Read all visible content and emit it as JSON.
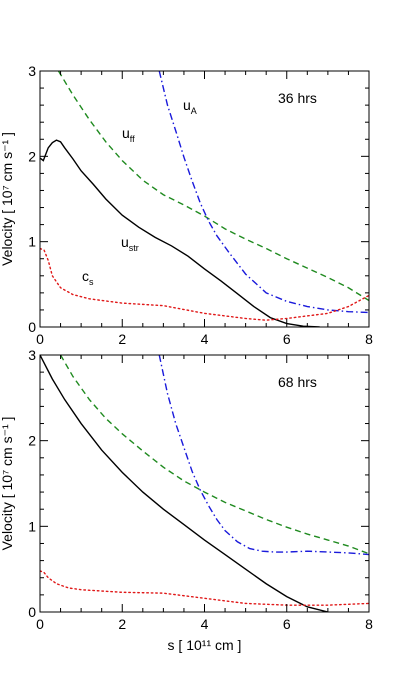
{
  "chart_data": [
    {
      "type": "line",
      "panel_label": "36 hrs",
      "xlim": [
        0,
        8
      ],
      "ylim": [
        0,
        3
      ],
      "xticks": [
        "0",
        "2",
        "4",
        "6",
        "8"
      ],
      "yticks": [
        "0",
        "1",
        "2",
        "3"
      ],
      "xlabel": "",
      "ylabel": "Velocity [ 10⁷ cm s⁻¹ ]",
      "grid": false,
      "legend": "none",
      "series": [
        {
          "name": "u_str",
          "label_main": "u",
          "label_sub": "str",
          "color": "#000000",
          "dash": "solid",
          "x": [
            0,
            0.08,
            0.2,
            0.3,
            0.4,
            0.5,
            0.6,
            0.8,
            1.0,
            1.3,
            1.6,
            2.0,
            2.4,
            2.8,
            3.2,
            3.6,
            4.0,
            4.4,
            4.8,
            5.2,
            5.6,
            6.0,
            6.4,
            6.8
          ],
          "y": [
            1.98,
            1.95,
            2.1,
            2.16,
            2.19,
            2.17,
            2.1,
            1.97,
            1.83,
            1.67,
            1.5,
            1.31,
            1.17,
            1.05,
            0.95,
            0.83,
            0.68,
            0.54,
            0.39,
            0.24,
            0.11,
            0.04,
            0.01,
            0.0
          ]
        },
        {
          "name": "u_ff",
          "label_main": "u",
          "label_sub": "ff",
          "color": "#1f8a1f",
          "dash": "dashed",
          "x": [
            0.45,
            0.8,
            1.2,
            1.6,
            2.0,
            2.5,
            3.0,
            3.5,
            4.0,
            4.5,
            5.0,
            5.5,
            6.0,
            6.5,
            7.0,
            7.5,
            8.0
          ],
          "y": [
            3.0,
            2.72,
            2.43,
            2.17,
            1.95,
            1.72,
            1.55,
            1.43,
            1.3,
            1.15,
            1.03,
            0.92,
            0.8,
            0.69,
            0.58,
            0.46,
            0.31
          ]
        },
        {
          "name": "u_A",
          "label_main": "u",
          "label_sub": "A",
          "color": "#1a1adb",
          "dash": "dashdot",
          "x": [
            2.9,
            3.1,
            3.3,
            3.5,
            3.7,
            3.9,
            4.1,
            4.3,
            4.6,
            5.0,
            5.5,
            6.0,
            6.5,
            7.0,
            7.5,
            8.0
          ],
          "y": [
            3.0,
            2.6,
            2.3,
            1.99,
            1.71,
            1.45,
            1.24,
            1.07,
            0.87,
            0.62,
            0.4,
            0.3,
            0.24,
            0.2,
            0.18,
            0.17
          ]
        },
        {
          "name": "c_s",
          "label_main": "c",
          "label_sub": "s",
          "color": "#e01818",
          "dash": "dotted",
          "x": [
            0,
            0.1,
            0.2,
            0.3,
            0.5,
            0.8,
            1.2,
            2.0,
            3.0,
            4.0,
            5.0,
            5.5,
            6.0,
            6.5,
            7.0,
            7.5,
            8.0
          ],
          "y": [
            0.92,
            0.9,
            0.78,
            0.6,
            0.46,
            0.38,
            0.33,
            0.28,
            0.25,
            0.16,
            0.1,
            0.08,
            0.1,
            0.13,
            0.16,
            0.24,
            0.37
          ]
        }
      ]
    },
    {
      "type": "line",
      "panel_label": "68 hrs",
      "xlim": [
        0,
        8
      ],
      "ylim": [
        0,
        3
      ],
      "xticks": [
        "0",
        "2",
        "4",
        "6",
        "8"
      ],
      "yticks": [
        "0",
        "1",
        "2",
        "3"
      ],
      "xlabel": "s [ 10¹¹ cm ]",
      "ylabel": "Velocity [ 10⁷ cm s⁻¹ ]",
      "grid": false,
      "legend": "none",
      "series": [
        {
          "color": "#000000",
          "dash": "solid",
          "x": [
            0,
            0.3,
            0.6,
            1.0,
            1.5,
            2.0,
            2.5,
            3.0,
            3.5,
            4.0,
            4.5,
            5.0,
            5.5,
            6.0,
            6.5,
            7.0
          ],
          "y": [
            3.0,
            2.72,
            2.48,
            2.2,
            1.89,
            1.63,
            1.4,
            1.2,
            1.02,
            0.84,
            0.67,
            0.5,
            0.33,
            0.18,
            0.06,
            0.0
          ]
        },
        {
          "color": "#1f8a1f",
          "dash": "dashed",
          "x": [
            0.5,
            0.8,
            1.2,
            1.6,
            2.0,
            2.5,
            3.0,
            3.5,
            4.0,
            4.5,
            5.0,
            5.5,
            6.0,
            6.5,
            7.0,
            7.5,
            8.0
          ],
          "y": [
            3.0,
            2.75,
            2.48,
            2.26,
            2.08,
            1.88,
            1.69,
            1.53,
            1.4,
            1.28,
            1.18,
            1.08,
            0.99,
            0.91,
            0.84,
            0.77,
            0.68
          ]
        },
        {
          "color": "#1a1adb",
          "dash": "dashdot",
          "x": [
            2.9,
            3.1,
            3.3,
            3.5,
            3.7,
            3.9,
            4.1,
            4.3,
            4.5,
            4.8,
            5.1,
            5.4,
            5.7,
            6.0,
            6.5,
            7.0,
            7.5,
            8.0
          ],
          "y": [
            3.0,
            2.55,
            2.2,
            1.92,
            1.64,
            1.42,
            1.24,
            1.08,
            0.95,
            0.82,
            0.74,
            0.71,
            0.7,
            0.7,
            0.71,
            0.7,
            0.69,
            0.67
          ]
        },
        {
          "color": "#e01818",
          "dash": "dotted",
          "x": [
            0,
            0.1,
            0.2,
            0.4,
            0.7,
            1.0,
            2.0,
            3.0,
            4.0,
            5.0,
            6.0,
            7.0,
            8.0
          ],
          "y": [
            0.48,
            0.46,
            0.4,
            0.33,
            0.28,
            0.26,
            0.23,
            0.22,
            0.16,
            0.1,
            0.08,
            0.08,
            0.1
          ]
        }
      ]
    }
  ]
}
